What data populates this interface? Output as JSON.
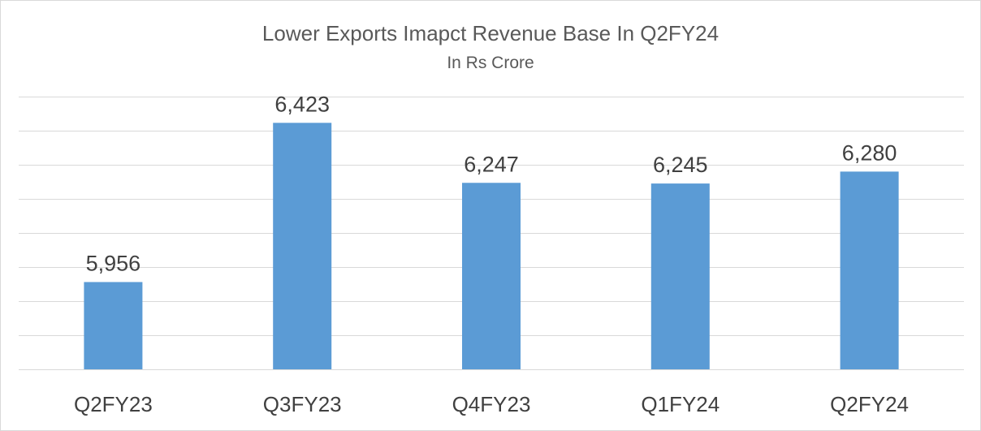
{
  "chart_data": {
    "type": "bar",
    "title": "Lower Exports Imapct Revenue Base In Q2FY24",
    "subtitle": "In Rs Crore",
    "categories": [
      "Q2FY23",
      "Q3FY23",
      "Q4FY23",
      "Q1FY24",
      "Q2FY24"
    ],
    "values": [
      5956,
      6423,
      6247,
      6245,
      6280
    ],
    "data_labels": [
      "5,956",
      "6,423",
      "6,247",
      "6,245",
      "6,280"
    ],
    "xlabel": "",
    "ylabel": "",
    "ylim": [
      5700,
      6500
    ],
    "ytick_step": 100,
    "grid": true,
    "legend": "none",
    "bar_color": "#5b9bd5",
    "grid_color": "#d9d9d9"
  }
}
